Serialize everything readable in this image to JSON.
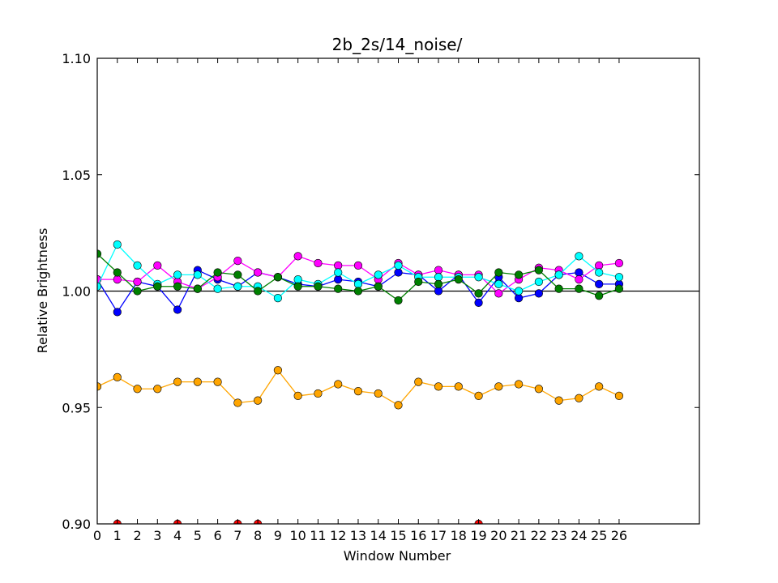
{
  "chart_data": {
    "type": "line",
    "title": "2b_2s/14_noise/",
    "xlabel": "Window Number",
    "ylabel": "Relative Brightness",
    "xlim": [
      0,
      30
    ],
    "ylim": [
      0.9,
      1.1
    ],
    "x_ticks": [
      0,
      1,
      2,
      3,
      4,
      5,
      6,
      7,
      8,
      9,
      10,
      11,
      12,
      13,
      14,
      15,
      16,
      17,
      18,
      19,
      20,
      21,
      22,
      23,
      24,
      25,
      26
    ],
    "y_ticks": [
      "0.90",
      "0.95",
      "1.00",
      "1.05",
      "1.10"
    ],
    "grid": false,
    "reference_line": 1.0,
    "series": [
      {
        "color": "#0000ff",
        "x": [
          0,
          1,
          2,
          3,
          4,
          5,
          6,
          7,
          8,
          9,
          10,
          11,
          12,
          13,
          14,
          15,
          16,
          17,
          18,
          19,
          20,
          21,
          22,
          23,
          24,
          25,
          26
        ],
        "values": [
          1.005,
          0.991,
          1.004,
          1.002,
          0.992,
          1.009,
          1.005,
          1.002,
          1.008,
          1.006,
          1.003,
          1.002,
          1.005,
          1.004,
          1.002,
          1.008,
          1.007,
          1.0,
          1.007,
          0.995,
          1.006,
          0.997,
          0.999,
          1.007,
          1.008,
          1.003,
          1.003
        ]
      },
      {
        "color": "#ff00ff",
        "x": [
          0,
          1,
          2,
          3,
          4,
          5,
          6,
          7,
          8,
          9,
          10,
          11,
          12,
          13,
          14,
          15,
          16,
          17,
          18,
          19,
          20,
          21,
          22,
          23,
          24,
          25,
          26
        ],
        "values": [
          1.005,
          1.005,
          1.004,
          1.011,
          1.004,
          1.001,
          1.006,
          1.013,
          1.008,
          1.006,
          1.015,
          1.012,
          1.011,
          1.011,
          1.005,
          1.012,
          1.007,
          1.009,
          1.007,
          1.007,
          0.999,
          1.005,
          1.01,
          1.009,
          1.005,
          1.011,
          1.012
        ]
      },
      {
        "color": "#00ffff",
        "x": [
          0,
          1,
          2,
          3,
          4,
          5,
          6,
          7,
          8,
          9,
          10,
          11,
          12,
          13,
          14,
          15,
          16,
          17,
          18,
          19,
          20,
          21,
          22,
          23,
          24,
          25,
          26
        ],
        "values": [
          1.002,
          1.02,
          1.011,
          1.003,
          1.007,
          1.007,
          1.001,
          1.002,
          1.002,
          0.997,
          1.005,
          1.003,
          1.008,
          1.003,
          1.007,
          1.011,
          1.006,
          1.006,
          1.006,
          1.006,
          1.003,
          1.0,
          1.004,
          1.007,
          1.015,
          1.008,
          1.006
        ]
      },
      {
        "color": "#008000",
        "x": [
          0,
          1,
          2,
          3,
          4,
          5,
          6,
          7,
          8,
          9,
          10,
          11,
          12,
          13,
          14,
          15,
          16,
          17,
          18,
          19,
          20,
          21,
          22,
          23,
          24,
          25,
          26
        ],
        "values": [
          1.016,
          1.008,
          1.0,
          1.002,
          1.002,
          1.001,
          1.008,
          1.007,
          1.0,
          1.006,
          1.002,
          1.002,
          1.001,
          1.0,
          1.002,
          0.996,
          1.004,
          1.003,
          1.005,
          0.999,
          1.008,
          1.007,
          1.009,
          1.001,
          1.001,
          0.998,
          1.001
        ]
      },
      {
        "color": "#ffa500",
        "x": [
          0,
          1,
          2,
          3,
          4,
          5,
          6,
          7,
          8,
          9,
          10,
          11,
          12,
          13,
          14,
          15,
          16,
          17,
          18,
          19,
          20,
          21,
          22,
          23,
          24,
          25,
          26
        ],
        "values": [
          0.959,
          0.963,
          0.958,
          0.958,
          0.961,
          0.961,
          0.961,
          0.952,
          0.953,
          0.966,
          0.955,
          0.956,
          0.96,
          0.957,
          0.956,
          0.951,
          0.961,
          0.959,
          0.959,
          0.955,
          0.959,
          0.96,
          0.958,
          0.953,
          0.954,
          0.959,
          0.955
        ]
      },
      {
        "color": "#ff0000",
        "x": [
          1,
          4,
          7,
          8,
          19
        ],
        "values": [
          0.9,
          0.9,
          0.9,
          0.9,
          0.9
        ],
        "markers_only": true
      }
    ]
  }
}
